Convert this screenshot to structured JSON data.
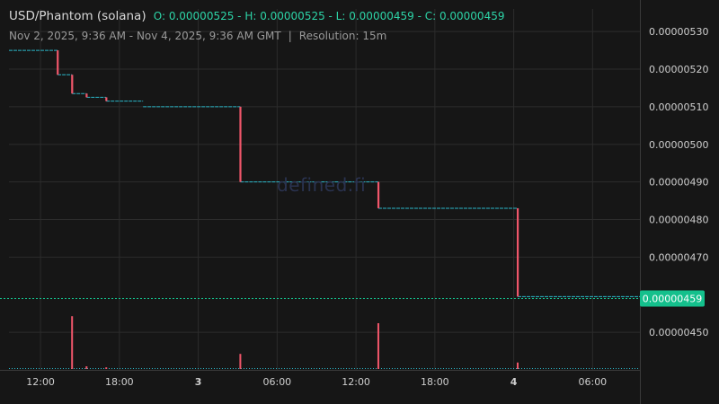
{
  "header": {
    "pair": "USD/Phantom (solana)",
    "ohlc": "O: 0.00000525 - H: 0.00000525 - L: 0.00000459 - C: 0.00000459",
    "range": "Nov 2, 2025, 9:36 AM - Nov 4, 2025, 9:36 AM GMT",
    "separator": "|",
    "resolution": "Resolution: 15m"
  },
  "watermark": "defined.fi",
  "chart_data": {
    "type": "line",
    "x_axis": {
      "ticks": [
        {
          "label": "12:00",
          "hour": 12,
          "bold": false
        },
        {
          "label": "18:00",
          "hour": 18,
          "bold": false
        },
        {
          "label": "3",
          "hour": 24,
          "bold": true
        },
        {
          "label": "06:00",
          "hour": 30,
          "bold": false
        },
        {
          "label": "12:00",
          "hour": 36,
          "bold": false
        },
        {
          "label": "18:00",
          "hour": 42,
          "bold": false
        },
        {
          "label": "4",
          "hour": 48,
          "bold": true
        },
        {
          "label": "06:00",
          "hour": 54,
          "bold": false
        }
      ],
      "range_hours": [
        9.6,
        57.6
      ]
    },
    "y_axis": {
      "ticks": [
        "0.00000530",
        "0.00000520",
        "0.00000510",
        "0.00000500",
        "0.00000490",
        "0.00000480",
        "0.00000470",
        "0.00000450"
      ],
      "tick_values": [
        5.3,
        5.2,
        5.1,
        5.0,
        4.9,
        4.8,
        4.7,
        4.5
      ],
      "scale": "1e-6",
      "range": [
        4.4,
        5.36
      ]
    },
    "last_price": {
      "label": "0.00000459",
      "value": 4.59,
      "color": "#14c08c"
    },
    "series": [
      {
        "points": [
          [
            9.6,
            5.25
          ],
          [
            13.3,
            5.25
          ],
          [
            13.3,
            5.185
          ],
          [
            14.4,
            5.185
          ],
          [
            14.4,
            5.135
          ],
          [
            15.5,
            5.135
          ],
          [
            15.5,
            5.125
          ],
          [
            17.0,
            5.125
          ],
          [
            17.0,
            5.115
          ],
          [
            19.8,
            5.115
          ],
          [
            19.8,
            5.1
          ],
          [
            27.2,
            5.1
          ],
          [
            27.2,
            4.9
          ],
          [
            37.7,
            4.9
          ],
          [
            37.7,
            4.83
          ],
          [
            48.3,
            4.83
          ],
          [
            48.3,
            4.595
          ],
          [
            57.6,
            4.595
          ]
        ],
        "drops": [
          {
            "hour": 13.3,
            "from": 5.25,
            "to": 5.185
          },
          {
            "hour": 14.4,
            "from": 5.185,
            "to": 5.135
          },
          {
            "hour": 15.5,
            "from": 5.135,
            "to": 5.125
          },
          {
            "hour": 17.0,
            "from": 5.125,
            "to": 5.115
          },
          {
            "hour": 27.2,
            "from": 5.1,
            "to": 4.9
          },
          {
            "hour": 37.7,
            "from": 4.9,
            "to": 4.83
          },
          {
            "hour": 48.3,
            "from": 4.83,
            "to": 4.595
          }
        ]
      }
    ],
    "volume": [
      {
        "hour": 14.4,
        "level": 0.98
      },
      {
        "hour": 15.5,
        "level": 0.05
      },
      {
        "hour": 17.0,
        "level": 0.03
      },
      {
        "hour": 27.2,
        "level": 0.28
      },
      {
        "hour": 37.7,
        "level": 0.85
      },
      {
        "hour": 48.3,
        "level": 0.12
      }
    ],
    "grid": true,
    "colors": {
      "background": "#161616",
      "grid": "#2c2c2c",
      "step_line": "#2bb7c8",
      "candle": "#f0566a",
      "volume": "#f0566a",
      "last_line": "#14c08c",
      "axis_text": "#cfcfcf"
    }
  }
}
